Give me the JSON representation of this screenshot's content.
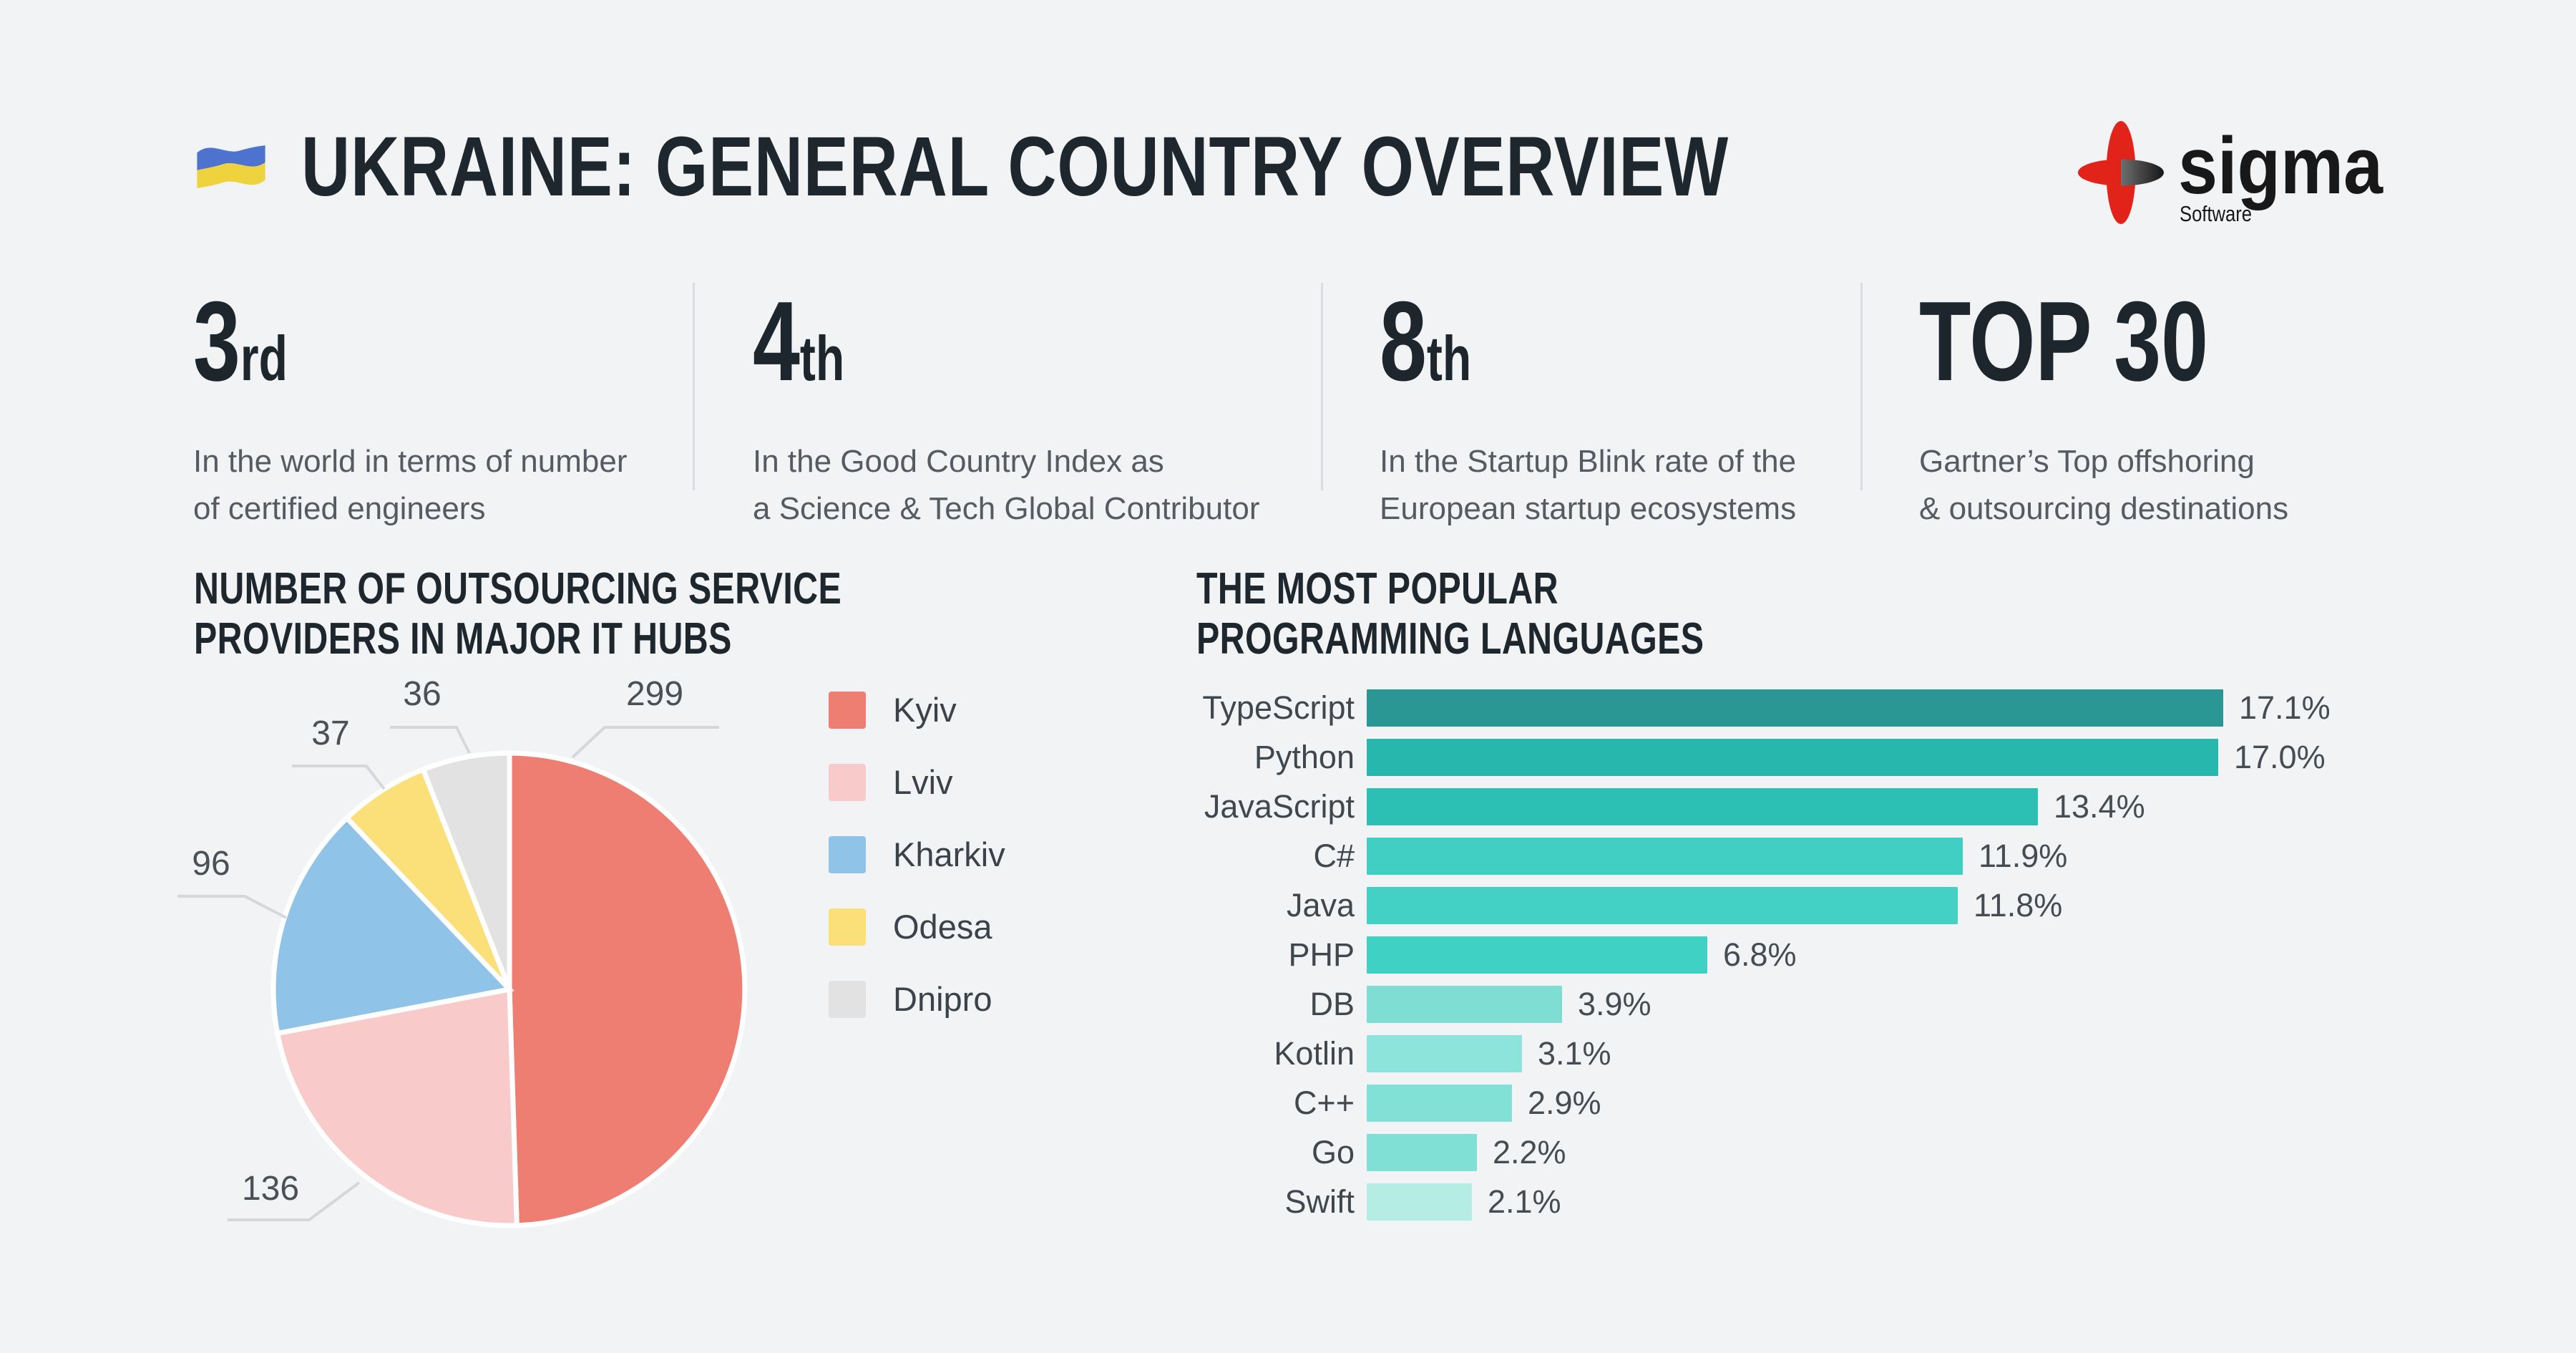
{
  "page": {
    "background": "#f2f3f5",
    "text_dark": "#1e272e",
    "text_gray": "#565b61"
  },
  "header": {
    "title": "UKRAINE: GENERAL COUNTRY OVERVIEW",
    "flag": "ukraine-flag"
  },
  "logo": {
    "brand": "sigma",
    "subtitle": "Software",
    "accent_red": "#e2231a"
  },
  "stats": [
    {
      "value": "3",
      "suffix": "rd",
      "description": "In the world in terms of number\nof certified engineers"
    },
    {
      "value": "4",
      "suffix": "th",
      "description": "In the Good Country Index as\na Science & Tech Global Contributor"
    },
    {
      "value": "8",
      "suffix": "th",
      "description": "In the Startup Blink rate of the\nEuropean startup ecosystems"
    },
    {
      "value": "TOP 30",
      "suffix": "",
      "description": "Gartner’s Top offshoring\n& outsourcing destinations"
    }
  ],
  "chart_data": [
    {
      "type": "pie",
      "title": "NUMBER OF OUTSOURCING SERVICE\nPROVIDERS IN MAJOR IT HUBS",
      "labels": [
        "Kyiv",
        "Lviv",
        "Kharkiv",
        "Odesa",
        "Dnipro"
      ],
      "values": [
        299,
        136,
        96,
        37,
        36
      ],
      "colors": [
        "#ee7d72",
        "#f8cbca",
        "#8fc3e7",
        "#fbdf78",
        "#e2e2e2"
      ],
      "legend_position": "right",
      "data_labels": "outside-with-leader-lines",
      "start_angle_deg": 0,
      "direction": "clockwise"
    },
    {
      "type": "bar",
      "orientation": "horizontal",
      "title": "THE MOST POPULAR\nPROGRAMMING LANGUAGES",
      "categories": [
        "TypeScript",
        "Python",
        "JavaScript",
        "C#",
        "Java",
        "PHP",
        "DB",
        "Kotlin",
        "C++",
        "Go",
        "Swift"
      ],
      "values": [
        17.1,
        17.0,
        13.4,
        11.9,
        11.8,
        6.8,
        3.9,
        3.1,
        2.9,
        2.2,
        2.1
      ],
      "value_labels": [
        "17.1%",
        "17.0%",
        "13.4%",
        "11.9%",
        "11.8%",
        "6.8%",
        "3.9%",
        "3.1%",
        "2.9%",
        "2.2%",
        "2.1%"
      ],
      "colors": [
        "#2a9794",
        "#28b7ac",
        "#2cbfb3",
        "#40cfc2",
        "#44d1c5",
        "#3fd2c4",
        "#7eded3",
        "#8de4da",
        "#82e1d7",
        "#80e0d5",
        "#b5ece4"
      ],
      "xlim": [
        0,
        18
      ],
      "grid": false,
      "legend": false
    }
  ]
}
